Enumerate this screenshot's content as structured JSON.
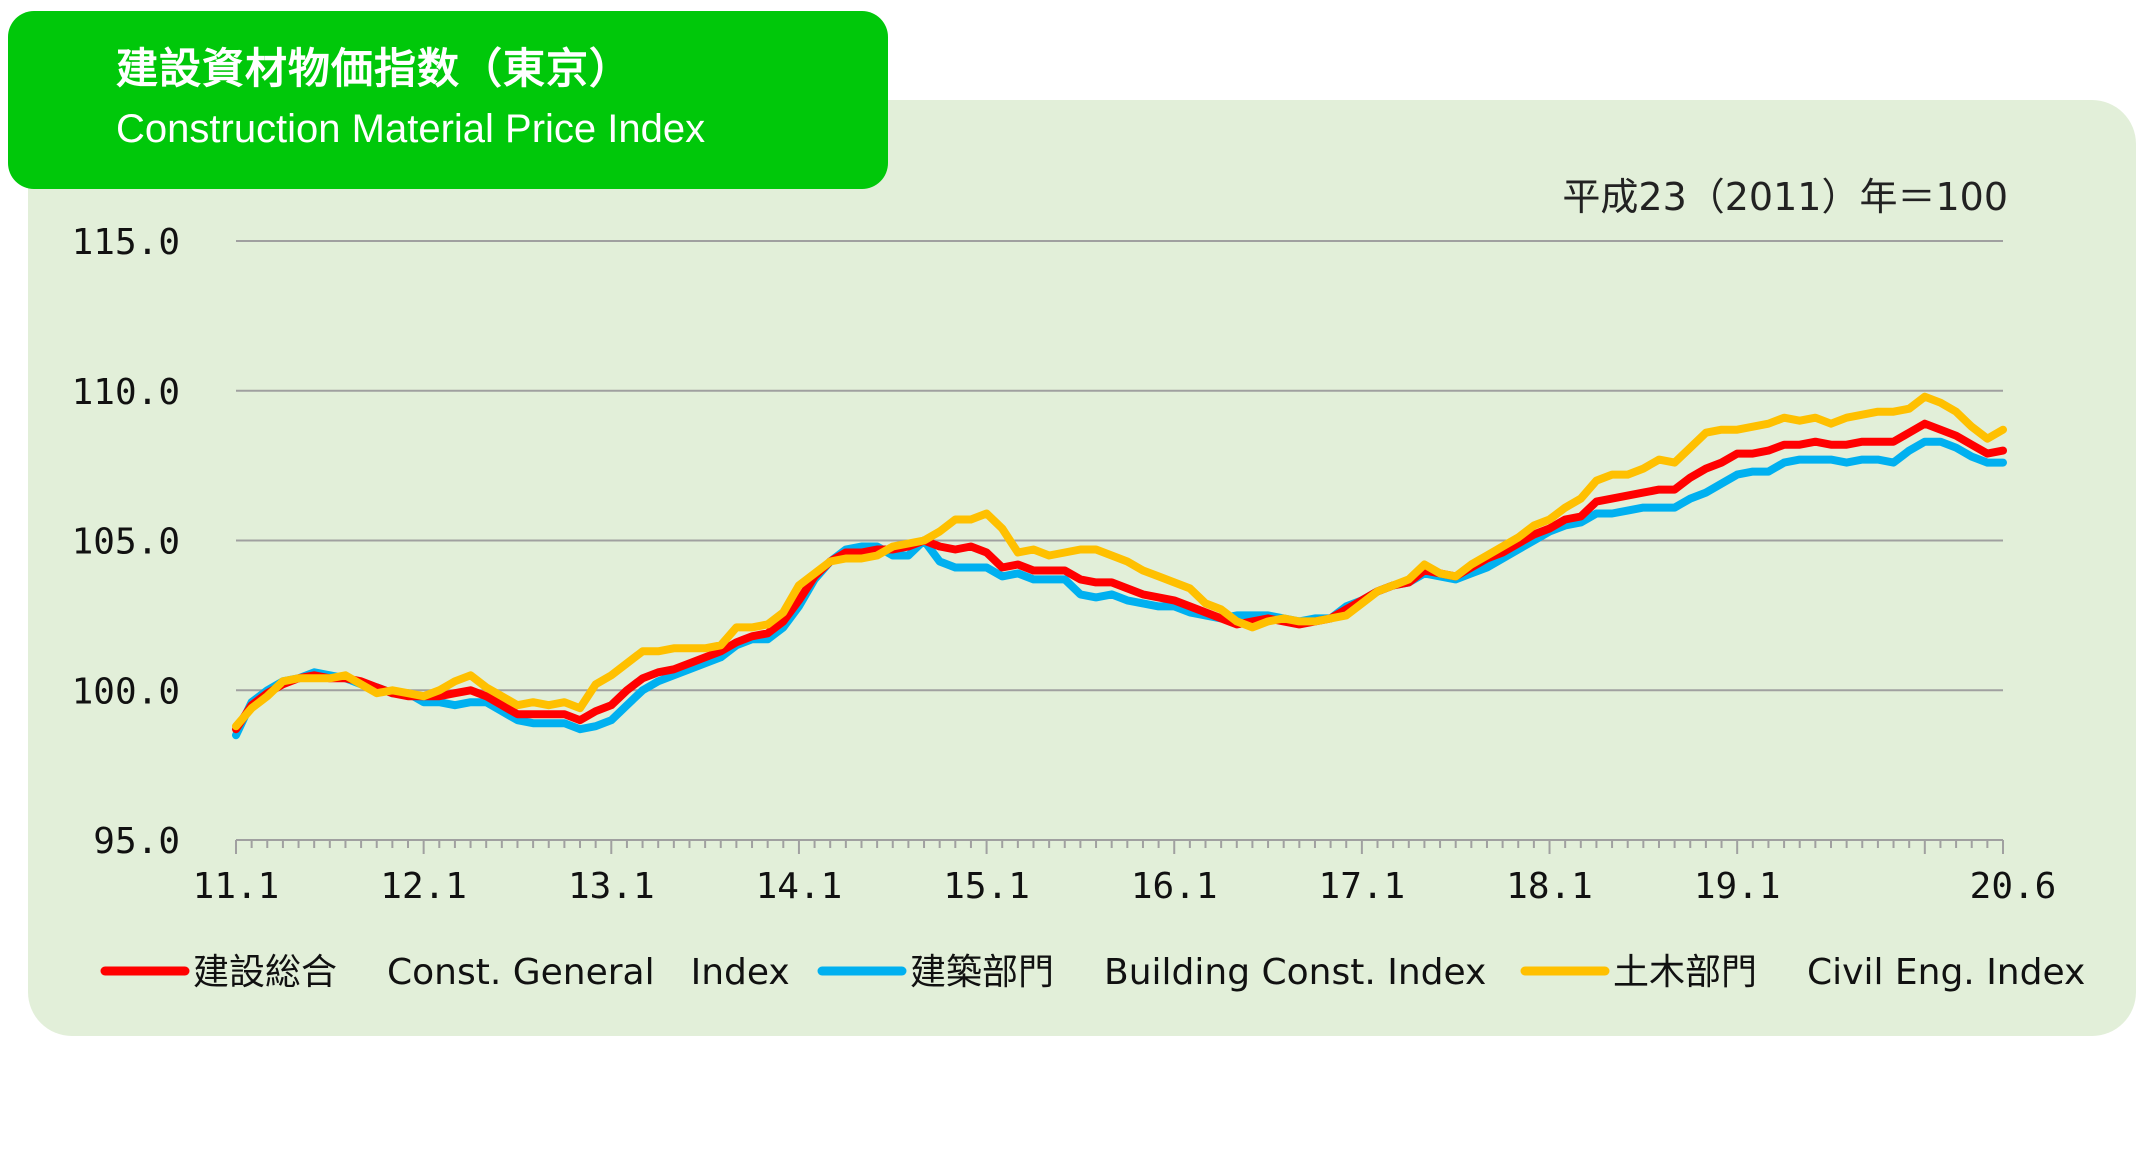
{
  "title": {
    "jp": "建設資材物価指数（東京）",
    "en": "Construction Material Price Index"
  },
  "colors": {
    "panel": "#e2efd9",
    "title_bg": "#00c80a",
    "general": "#ff0000",
    "building": "#00b0f0",
    "civil": "#ffc000",
    "grid": "#a0a0a0"
  },
  "chart_data": {
    "type": "line",
    "note": "平成23（2011）年＝100",
    "ylim": [
      95,
      115
    ],
    "yticks": [
      "95.0",
      "100.0",
      "105.0",
      "110.0",
      "115.0"
    ],
    "xticks": [
      "11.1",
      "12.1",
      "13.1",
      "14.1",
      "15.1",
      "16.1",
      "17.1",
      "18.1",
      "19.1",
      "20.6"
    ],
    "x_range": [
      "2011-01",
      "2020-06"
    ],
    "frequency": "monthly",
    "grid": true,
    "legend_position": "bottom",
    "series": [
      {
        "name": "建設総合　Const. General　Index",
        "color": "#ff0000",
        "values": [
          98.7,
          99.5,
          99.9,
          100.2,
          100.4,
          100.5,
          100.4,
          100.4,
          100.3,
          100.1,
          99.9,
          99.8,
          99.8,
          99.8,
          99.9,
          100.0,
          99.8,
          99.5,
          99.2,
          99.2,
          99.2,
          99.2,
          99.0,
          99.3,
          99.5,
          100.0,
          100.4,
          100.6,
          100.7,
          100.9,
          101.1,
          101.3,
          101.6,
          101.8,
          101.9,
          102.3,
          103.0,
          103.8,
          104.3,
          104.6,
          104.6,
          104.7,
          104.7,
          104.8,
          105.0,
          104.8,
          104.7,
          104.8,
          104.6,
          104.1,
          104.2,
          104.0,
          104.0,
          104.0,
          103.7,
          103.6,
          103.6,
          103.4,
          103.2,
          103.1,
          103.0,
          102.8,
          102.6,
          102.4,
          102.2,
          102.3,
          102.4,
          102.3,
          102.2,
          102.3,
          102.4,
          102.7,
          103.0,
          103.3,
          103.5,
          103.6,
          104.0,
          103.9,
          103.8,
          104.1,
          104.4,
          104.6,
          104.9,
          105.2,
          105.4,
          105.7,
          105.8,
          106.3,
          106.4,
          106.5,
          106.6,
          106.7,
          106.7,
          107.1,
          107.4,
          107.6,
          107.9,
          107.9,
          108.0,
          108.2,
          108.2,
          108.3,
          108.2,
          108.2,
          108.3,
          108.3,
          108.3,
          108.6,
          108.9,
          108.7,
          108.5,
          108.2,
          107.9,
          108.0
        ]
      },
      {
        "name": "建築部門　Building Const. Index",
        "color": "#00b0f0",
        "values": [
          98.5,
          99.6,
          100.0,
          100.3,
          100.4,
          100.6,
          100.5,
          100.4,
          100.2,
          100.1,
          99.9,
          99.9,
          99.6,
          99.6,
          99.5,
          99.6,
          99.6,
          99.3,
          99.0,
          98.9,
          98.9,
          98.9,
          98.7,
          98.8,
          99.0,
          99.5,
          100.0,
          100.3,
          100.5,
          100.7,
          100.9,
          101.1,
          101.5,
          101.7,
          101.7,
          102.1,
          102.8,
          103.7,
          104.3,
          104.7,
          104.8,
          104.8,
          104.5,
          104.5,
          105.0,
          104.3,
          104.1,
          104.1,
          104.1,
          103.8,
          103.9,
          103.7,
          103.7,
          103.7,
          103.2,
          103.1,
          103.2,
          103.0,
          102.9,
          102.8,
          102.8,
          102.6,
          102.5,
          102.4,
          102.5,
          102.5,
          102.5,
          102.4,
          102.3,
          102.4,
          102.4,
          102.8,
          103.0,
          103.3,
          103.5,
          103.6,
          103.9,
          103.8,
          103.7,
          103.9,
          104.1,
          104.4,
          104.7,
          105.0,
          105.3,
          105.5,
          105.6,
          105.9,
          105.9,
          106.0,
          106.1,
          106.1,
          106.1,
          106.4,
          106.6,
          106.9,
          107.2,
          107.3,
          107.3,
          107.6,
          107.7,
          107.7,
          107.7,
          107.6,
          107.7,
          107.7,
          107.6,
          108.0,
          108.3,
          108.3,
          108.1,
          107.8,
          107.6,
          107.6
        ]
      },
      {
        "name": "土木部門　Civil Eng. Index",
        "color": "#ffc000",
        "values": [
          98.8,
          99.4,
          99.8,
          100.3,
          100.4,
          100.4,
          100.4,
          100.5,
          100.2,
          99.9,
          100.0,
          99.9,
          99.8,
          100.0,
          100.3,
          100.5,
          100.1,
          99.8,
          99.5,
          99.6,
          99.5,
          99.6,
          99.4,
          100.2,
          100.5,
          100.9,
          101.3,
          101.3,
          101.4,
          101.4,
          101.4,
          101.5,
          102.1,
          102.1,
          102.2,
          102.6,
          103.5,
          103.9,
          104.3,
          104.4,
          104.4,
          104.5,
          104.8,
          104.9,
          105.0,
          105.3,
          105.7,
          105.7,
          105.9,
          105.4,
          104.6,
          104.7,
          104.5,
          104.6,
          104.7,
          104.7,
          104.5,
          104.3,
          104.0,
          103.8,
          103.6,
          103.4,
          102.9,
          102.7,
          102.3,
          102.1,
          102.3,
          102.4,
          102.3,
          102.3,
          102.4,
          102.5,
          102.9,
          103.3,
          103.5,
          103.7,
          104.2,
          103.9,
          103.8,
          104.2,
          104.5,
          104.8,
          105.1,
          105.5,
          105.7,
          106.1,
          106.4,
          107.0,
          107.2,
          107.2,
          107.4,
          107.7,
          107.6,
          108.1,
          108.6,
          108.7,
          108.7,
          108.8,
          108.9,
          109.1,
          109.0,
          109.1,
          108.9,
          109.1,
          109.2,
          109.3,
          109.3,
          109.4,
          109.8,
          109.6,
          109.3,
          108.8,
          108.4,
          108.7
        ]
      }
    ],
    "legend": [
      {
        "jp": "建設総合",
        "en": "Const. General　Index"
      },
      {
        "jp": "建築部門",
        "en": "Building Const. Index"
      },
      {
        "jp": "土木部門",
        "en": "Civil Eng. Index"
      }
    ]
  }
}
